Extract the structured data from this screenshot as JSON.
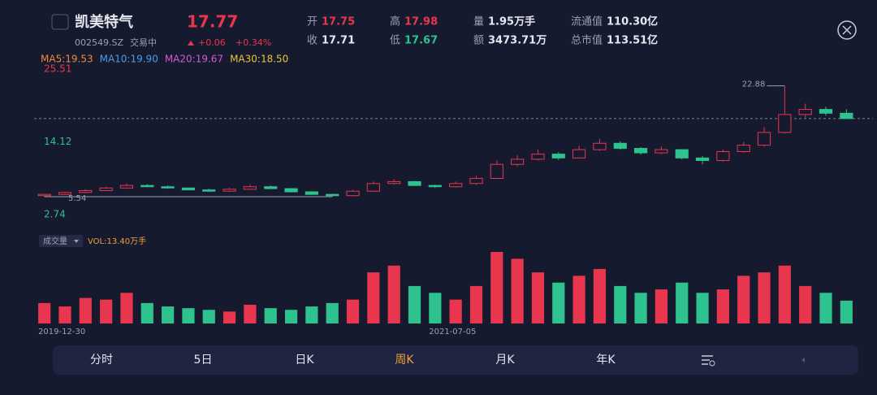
{
  "header": {
    "name": "凯美特气",
    "price": 17.77,
    "code": "002549.SZ",
    "status": "交易中",
    "change": "+0.06",
    "change_pct": "+0.34%"
  },
  "quote": [
    {
      "label": "开",
      "value": 17.75
    },
    {
      "label": "收",
      "value": 17.71
    },
    {
      "label": "高",
      "value": 17.98
    },
    {
      "label": "低",
      "value": 17.67
    },
    {
      "label": "量",
      "value": "1.95万手"
    },
    {
      "label": "额",
      "value": "3473.71万"
    },
    {
      "label": "流通值",
      "value": "110.30亿"
    },
    {
      "label": "总市值",
      "value": "113.51亿"
    }
  ],
  "ma": [
    {
      "text": "MA5:19.53",
      "color": "#f08a3c"
    },
    {
      "text": "MA10:19.90",
      "color": "#4a9be8"
    },
    {
      "text": "MA20:19.67",
      "color": "#d45ad4"
    },
    {
      "text": "MA30:18.50",
      "color": "#e8c63c"
    }
  ],
  "volume_panel": {
    "name": "成交量",
    "label": "VOL:13.40万手"
  },
  "chart_data": {
    "type": "candlestick",
    "up_color": "#e8364f",
    "down_color": "#2ec28f",
    "categories": [
      "2019-12-30",
      null,
      null,
      null,
      null,
      null,
      null,
      null,
      null,
      null,
      null,
      null,
      null,
      null,
      null,
      null,
      null,
      null,
      null,
      "2021-07-05",
      null,
      null,
      null,
      null,
      null,
      null,
      null,
      null,
      null,
      null,
      null,
      null,
      null,
      null,
      null,
      null,
      null,
      null,
      null,
      null
    ],
    "open": [
      5.7,
      5.9,
      6.2,
      6.5,
      6.9,
      7.3,
      7.1,
      6.9,
      6.6,
      6.4,
      6.7,
      7.1,
      6.8,
      6.3,
      5.9,
      5.7,
      6.4,
      7.6,
      7.9,
      7.3,
      7.1,
      7.6,
      8.4,
      10.6,
      11.4,
      12.2,
      11.6,
      12.9,
      13.9,
      13.1,
      12.4,
      12.9,
      11.6,
      11.2,
      12.6,
      13.6,
      15.6,
      18.4,
      19.2,
      18.6
    ],
    "high": [
      6.0,
      6.3,
      6.7,
      7.1,
      7.6,
      7.5,
      7.3,
      7.0,
      6.8,
      6.9,
      7.4,
      7.3,
      6.9,
      6.4,
      6.0,
      6.6,
      7.9,
      8.3,
      8.0,
      7.4,
      7.9,
      8.8,
      11.2,
      12.0,
      12.9,
      12.5,
      13.5,
      14.6,
      14.2,
      13.3,
      13.4,
      13.0,
      11.9,
      12.9,
      14.1,
      16.4,
      22.88,
      20.1,
      19.6,
      19.2
    ],
    "low": [
      5.6,
      5.8,
      6.1,
      6.4,
      6.8,
      7.0,
      6.8,
      6.5,
      6.3,
      6.3,
      6.6,
      6.7,
      6.2,
      5.8,
      5.54,
      5.6,
      6.3,
      7.4,
      7.2,
      6.9,
      7.0,
      7.4,
      8.3,
      10.3,
      11.2,
      11.3,
      11.5,
      12.7,
      12.9,
      12.1,
      12.2,
      11.4,
      10.6,
      11.0,
      12.4,
      13.4,
      15.4,
      17.9,
      18.2,
      17.67
    ],
    "close": [
      5.9,
      6.2,
      6.5,
      6.9,
      7.3,
      7.1,
      6.9,
      6.6,
      6.4,
      6.7,
      7.1,
      6.8,
      6.3,
      5.9,
      5.7,
      6.4,
      7.6,
      7.9,
      7.3,
      7.1,
      7.6,
      8.4,
      10.6,
      11.4,
      12.2,
      11.6,
      12.9,
      13.9,
      13.1,
      12.4,
      12.9,
      11.6,
      11.2,
      12.6,
      13.6,
      15.6,
      18.4,
      19.2,
      18.6,
      17.77
    ],
    "volume": [
      12,
      10,
      15,
      14,
      18,
      12,
      10,
      9,
      8,
      7,
      11,
      9,
      8,
      10,
      12,
      14,
      30,
      34,
      22,
      18,
      14,
      22,
      42,
      38,
      30,
      24,
      28,
      32,
      22,
      18,
      20,
      24,
      18,
      20,
      28,
      30,
      34,
      22,
      18,
      13.4
    ],
    "ylim": [
      2.74,
      25.51
    ],
    "yticks": [
      2.74,
      14.12,
      25.51
    ]
  },
  "tabs": [
    "分时",
    "5日",
    "日K",
    "周K",
    "月K",
    "年K"
  ],
  "active_tab": 3
}
